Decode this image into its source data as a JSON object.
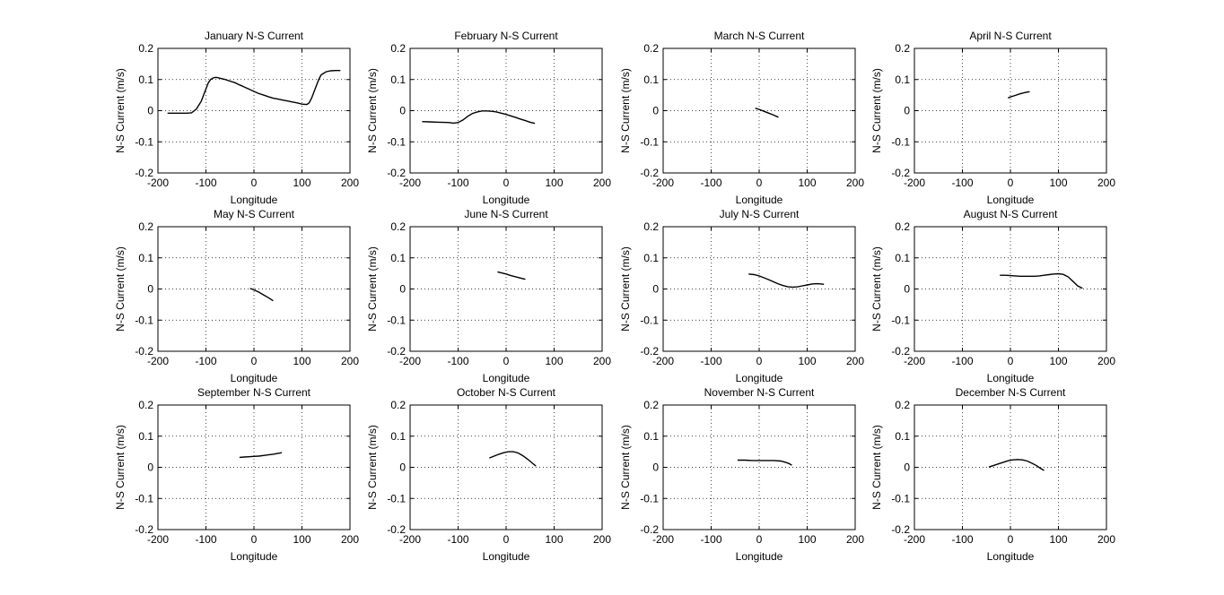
{
  "chart_data": [
    {
      "type": "line",
      "title": "January N-S Current",
      "xlabel": "Longitude",
      "ylabel": "N-S Current (m/s)",
      "xlim": [
        -200,
        200
      ],
      "ylim": [
        -0.2,
        0.2
      ],
      "xticks": [
        "-200",
        "-100",
        "0",
        "100",
        "200"
      ],
      "yticks": [
        "-0.2",
        "-0.1",
        "0",
        "0.1",
        "0.2"
      ],
      "grid": true,
      "series": [
        {
          "x": [
            -180,
            -160,
            -140,
            -130,
            -120,
            -110,
            -100,
            -95,
            -90,
            -85,
            -80,
            -75,
            -70,
            -60,
            -50,
            -40,
            -30,
            -20,
            -10,
            0,
            10,
            20,
            30,
            40,
            50,
            60,
            70,
            80,
            90,
            100,
            110,
            115,
            120,
            125,
            130,
            135,
            140,
            150,
            160,
            170,
            180
          ],
          "y": [
            -0.008,
            -0.008,
            -0.008,
            -0.007,
            0.005,
            0.03,
            0.07,
            0.09,
            0.1,
            0.105,
            0.107,
            0.106,
            0.104,
            0.1,
            0.095,
            0.09,
            0.083,
            0.076,
            0.069,
            0.062,
            0.055,
            0.05,
            0.045,
            0.04,
            0.037,
            0.034,
            0.031,
            0.028,
            0.025,
            0.021,
            0.02,
            0.025,
            0.04,
            0.06,
            0.08,
            0.1,
            0.115,
            0.125,
            0.128,
            0.129,
            0.129
          ]
        }
      ]
    },
    {
      "type": "line",
      "title": "February N-S Current",
      "xlabel": "Longitude",
      "ylabel": "N-S Current (m/s)",
      "xlim": [
        -200,
        200
      ],
      "ylim": [
        -0.2,
        0.2
      ],
      "xticks": [
        "-200",
        "-100",
        "0",
        "100",
        "200"
      ],
      "yticks": [
        "-0.2",
        "-0.1",
        "0",
        "0.1",
        "0.2"
      ],
      "grid": true,
      "series": [
        {
          "x": [
            -175,
            -160,
            -140,
            -120,
            -110,
            -100,
            -90,
            -80,
            -70,
            -60,
            -50,
            -40,
            -30,
            -20,
            -10,
            0,
            10,
            20,
            30,
            40,
            50,
            60
          ],
          "y": [
            -0.035,
            -0.036,
            -0.037,
            -0.038,
            -0.04,
            -0.038,
            -0.03,
            -0.018,
            -0.009,
            -0.004,
            -0.001,
            -0.001,
            -0.002,
            -0.004,
            -0.008,
            -0.012,
            -0.017,
            -0.022,
            -0.027,
            -0.032,
            -0.037,
            -0.041
          ]
        }
      ]
    },
    {
      "type": "line",
      "title": "March N-S Current",
      "xlabel": "Longitude",
      "ylabel": "N-S Current (m/s)",
      "xlim": [
        -200,
        200
      ],
      "ylim": [
        -0.2,
        0.2
      ],
      "xticks": [
        "-200",
        "-100",
        "0",
        "100",
        "200"
      ],
      "yticks": [
        "-0.2",
        "-0.1",
        "0",
        "0.1",
        "0.2"
      ],
      "grid": true,
      "series": [
        {
          "x": [
            -8,
            0,
            10,
            20,
            30,
            40
          ],
          "y": [
            0.008,
            0.004,
            -0.002,
            -0.008,
            -0.014,
            -0.021
          ]
        }
      ]
    },
    {
      "type": "line",
      "title": "April N-S Current",
      "xlabel": "Longitude",
      "ylabel": "N-S Current (m/s)",
      "xlim": [
        -200,
        200
      ],
      "ylim": [
        -0.2,
        0.2
      ],
      "xticks": [
        "-200",
        "-100",
        "0",
        "100",
        "200"
      ],
      "yticks": [
        "-0.2",
        "-0.1",
        "0",
        "0.1",
        "0.2"
      ],
      "grid": true,
      "series": [
        {
          "x": [
            -5,
            0,
            10,
            20,
            30,
            40
          ],
          "y": [
            0.041,
            0.044,
            0.049,
            0.054,
            0.058,
            0.061
          ]
        }
      ]
    },
    {
      "type": "line",
      "title": "May N-S Current",
      "xlabel": "Longitude",
      "ylabel": "N-S Current (m/s)",
      "xlim": [
        -200,
        200
      ],
      "ylim": [
        -0.2,
        0.2
      ],
      "xticks": [
        "-200",
        "-100",
        "0",
        "100",
        "200"
      ],
      "yticks": [
        "-0.2",
        "-0.1",
        "0",
        "0.1",
        "0.2"
      ],
      "grid": true,
      "series": [
        {
          "x": [
            -8,
            0,
            10,
            20,
            30,
            40
          ],
          "y": [
            0.002,
            -0.003,
            -0.01,
            -0.019,
            -0.028,
            -0.038
          ]
        }
      ]
    },
    {
      "type": "line",
      "title": "June N-S Current",
      "xlabel": "Longitude",
      "ylabel": "N-S Current (m/s)",
      "xlim": [
        -200,
        200
      ],
      "ylim": [
        -0.2,
        0.2
      ],
      "xticks": [
        "-200",
        "-100",
        "0",
        "100",
        "200"
      ],
      "yticks": [
        "-0.2",
        "-0.1",
        "0",
        "0.1",
        "0.2"
      ],
      "grid": true,
      "series": [
        {
          "x": [
            -18,
            -10,
            0,
            10,
            20,
            30,
            40
          ],
          "y": [
            0.055,
            0.052,
            0.048,
            0.043,
            0.039,
            0.035,
            0.031
          ]
        }
      ]
    },
    {
      "type": "line",
      "title": "July N-S Current",
      "xlabel": "Longitude",
      "ylabel": "N-S Current (m/s)",
      "xlim": [
        -200,
        200
      ],
      "ylim": [
        -0.2,
        0.2
      ],
      "xticks": [
        "-200",
        "-100",
        "0",
        "100",
        "200"
      ],
      "yticks": [
        "-0.2",
        "-0.1",
        "0",
        "0.1",
        "0.2"
      ],
      "grid": true,
      "series": [
        {
          "x": [
            -22,
            -10,
            0,
            10,
            20,
            30,
            40,
            50,
            60,
            70,
            80,
            90,
            100,
            110,
            120,
            130,
            135
          ],
          "y": [
            0.048,
            0.046,
            0.042,
            0.036,
            0.03,
            0.023,
            0.016,
            0.011,
            0.007,
            0.006,
            0.007,
            0.01,
            0.013,
            0.016,
            0.017,
            0.016,
            0.015
          ]
        }
      ]
    },
    {
      "type": "line",
      "title": "August N-S Current",
      "xlabel": "Longitude",
      "ylabel": "N-S Current (m/s)",
      "xlim": [
        -200,
        200
      ],
      "ylim": [
        -0.2,
        0.2
      ],
      "xticks": [
        "-200",
        "-100",
        "0",
        "100",
        "200"
      ],
      "yticks": [
        "-0.2",
        "-0.1",
        "0",
        "0.1",
        "0.2"
      ],
      "grid": true,
      "series": [
        {
          "x": [
            -22,
            -10,
            0,
            10,
            20,
            30,
            40,
            50,
            60,
            70,
            80,
            90,
            100,
            110,
            120,
            130,
            140,
            150
          ],
          "y": [
            0.044,
            0.044,
            0.043,
            0.042,
            0.041,
            0.041,
            0.041,
            0.041,
            0.042,
            0.044,
            0.046,
            0.048,
            0.049,
            0.047,
            0.039,
            0.025,
            0.01,
            0.002
          ]
        }
      ]
    },
    {
      "type": "line",
      "title": "September N-S Current",
      "xlabel": "Longitude",
      "ylabel": "N-S Current (m/s)",
      "xlim": [
        -200,
        200
      ],
      "ylim": [
        -0.2,
        0.2
      ],
      "xticks": [
        "-200",
        "-100",
        "0",
        "100",
        "200"
      ],
      "yticks": [
        "-0.2",
        "-0.1",
        "0",
        "0.1",
        "0.2"
      ],
      "grid": true,
      "series": [
        {
          "x": [
            -30,
            -20,
            -10,
            0,
            10,
            20,
            30,
            40,
            50,
            58
          ],
          "y": [
            0.032,
            0.033,
            0.034,
            0.035,
            0.036,
            0.038,
            0.04,
            0.042,
            0.045,
            0.047
          ]
        }
      ]
    },
    {
      "type": "line",
      "title": "October N-S Current",
      "xlabel": "Longitude",
      "ylabel": "N-S Current (m/s)",
      "xlim": [
        -200,
        200
      ],
      "ylim": [
        -0.2,
        0.2
      ],
      "xticks": [
        "-200",
        "-100",
        "0",
        "100",
        "200"
      ],
      "yticks": [
        "-0.2",
        "-0.1",
        "0",
        "0.1",
        "0.2"
      ],
      "grid": true,
      "series": [
        {
          "x": [
            -35,
            -25,
            -15,
            -5,
            5,
            15,
            25,
            35,
            45,
            55,
            62
          ],
          "y": [
            0.03,
            0.036,
            0.042,
            0.047,
            0.05,
            0.05,
            0.046,
            0.037,
            0.026,
            0.013,
            0.004
          ]
        }
      ]
    },
    {
      "type": "line",
      "title": "November N-S Current",
      "xlabel": "Longitude",
      "ylabel": "N-S Current (m/s)",
      "xlim": [
        -200,
        200
      ],
      "ylim": [
        -0.2,
        0.2
      ],
      "xticks": [
        "-200",
        "-100",
        "0",
        "100",
        "200"
      ],
      "yticks": [
        "-0.2",
        "-0.1",
        "0",
        "0.1",
        "0.2"
      ],
      "grid": true,
      "series": [
        {
          "x": [
            -45,
            -30,
            -15,
            0,
            15,
            30,
            45,
            55,
            62,
            68
          ],
          "y": [
            0.023,
            0.023,
            0.022,
            0.022,
            0.022,
            0.022,
            0.02,
            0.016,
            0.012,
            0.007
          ]
        }
      ]
    },
    {
      "type": "line",
      "title": "December N-S Current",
      "xlabel": "Longitude",
      "ylabel": "N-S Current (m/s)",
      "xlim": [
        -200,
        200
      ],
      "ylim": [
        -0.2,
        0.2
      ],
      "xticks": [
        "-200",
        "-100",
        "0",
        "100",
        "200"
      ],
      "yticks": [
        "-0.2",
        "-0.1",
        "0",
        "0.1",
        "0.2"
      ],
      "grid": true,
      "series": [
        {
          "x": [
            -45,
            -35,
            -25,
            -15,
            -5,
            5,
            15,
            25,
            35,
            45,
            55,
            62,
            70
          ],
          "y": [
            0.001,
            0.006,
            0.011,
            0.016,
            0.021,
            0.024,
            0.025,
            0.024,
            0.02,
            0.013,
            0.005,
            -0.003,
            -0.01
          ]
        }
      ]
    }
  ]
}
